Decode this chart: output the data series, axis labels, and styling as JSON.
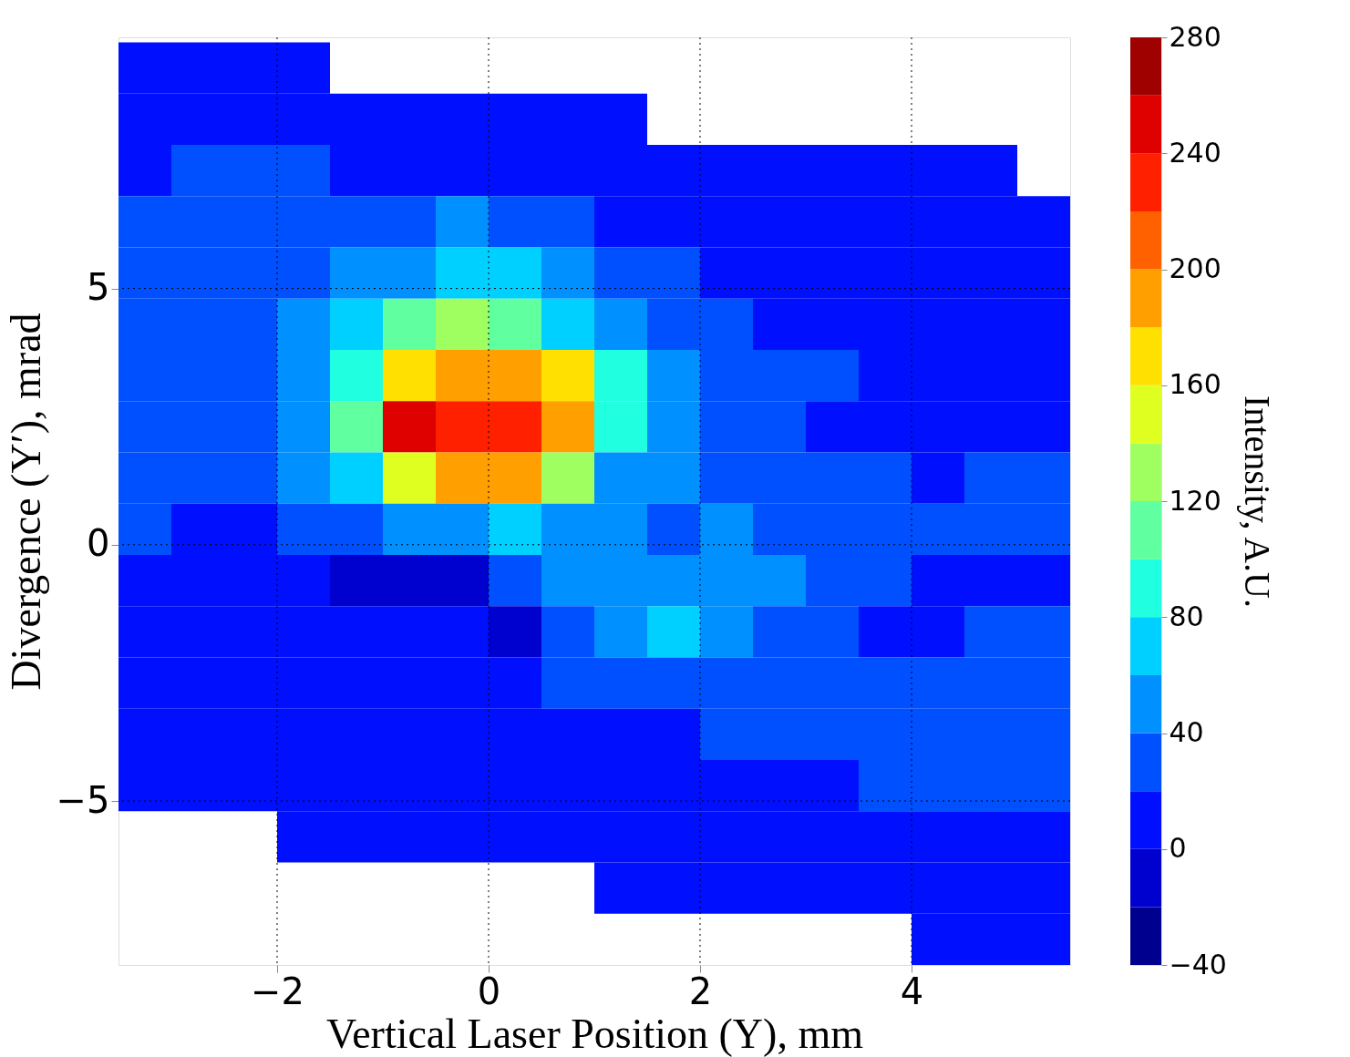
{
  "chart_data": {
    "type": "heatmap",
    "xlabel": "Vertical Laser Position (Y), mm",
    "ylabel": "Divergence (Y′), mrad",
    "clabel": "Intensity, A.U.",
    "x": [
      -3.25,
      -2.75,
      -2.25,
      -1.75,
      -1.25,
      -0.75,
      -0.25,
      0.25,
      0.75,
      1.25,
      1.75,
      2.25,
      2.75,
      3.25,
      3.75,
      4.25,
      4.75,
      5.25
    ],
    "y": [
      9.3,
      8.3,
      7.3,
      6.3,
      5.3,
      4.3,
      3.3,
      2.3,
      1.3,
      0.3,
      -0.7,
      -1.7,
      -2.7,
      -3.7,
      -4.7,
      -5.7,
      -6.7,
      -7.7
    ],
    "cells": [
      [
        10,
        10,
        10,
        10,
        null,
        null,
        null,
        null,
        null,
        null,
        null,
        null,
        null,
        null,
        null,
        null,
        null,
        null
      ],
      [
        10,
        10,
        10,
        10,
        10,
        10,
        10,
        10,
        10,
        10,
        null,
        null,
        null,
        null,
        null,
        null,
        null,
        null
      ],
      [
        10,
        30,
        30,
        30,
        10,
        10,
        10,
        10,
        10,
        10,
        10,
        10,
        10,
        10,
        10,
        10,
        10,
        null
      ],
      [
        30,
        30,
        30,
        30,
        30,
        30,
        50,
        30,
        30,
        10,
        10,
        10,
        10,
        10,
        10,
        10,
        10,
        10
      ],
      [
        30,
        30,
        30,
        30,
        50,
        50,
        70,
        70,
        50,
        30,
        30,
        10,
        10,
        10,
        10,
        10,
        10,
        10
      ],
      [
        30,
        30,
        30,
        50,
        70,
        110,
        130,
        110,
        70,
        50,
        30,
        30,
        10,
        10,
        10,
        10,
        10,
        10
      ],
      [
        30,
        30,
        30,
        50,
        90,
        170,
        190,
        190,
        170,
        90,
        50,
        30,
        30,
        30,
        10,
        10,
        10,
        10
      ],
      [
        30,
        30,
        30,
        50,
        110,
        250,
        230,
        230,
        190,
        90,
        50,
        30,
        30,
        10,
        10,
        10,
        10,
        10
      ],
      [
        30,
        30,
        30,
        50,
        70,
        150,
        190,
        190,
        130,
        50,
        50,
        30,
        30,
        30,
        30,
        10,
        30,
        30
      ],
      [
        30,
        10,
        10,
        30,
        30,
        50,
        50,
        70,
        50,
        50,
        30,
        50,
        30,
        30,
        30,
        30,
        30,
        30
      ],
      [
        10,
        10,
        10,
        10,
        -10,
        -10,
        -10,
        30,
        50,
        50,
        50,
        50,
        50,
        30,
        30,
        10,
        10,
        10
      ],
      [
        10,
        10,
        10,
        10,
        10,
        10,
        10,
        -10,
        30,
        50,
        70,
        50,
        30,
        30,
        10,
        10,
        30,
        30
      ],
      [
        10,
        10,
        10,
        10,
        10,
        10,
        10,
        10,
        30,
        30,
        30,
        30,
        30,
        30,
        30,
        30,
        30,
        30
      ],
      [
        10,
        10,
        10,
        10,
        10,
        10,
        10,
        10,
        10,
        10,
        10,
        30,
        30,
        30,
        30,
        30,
        30,
        30
      ],
      [
        10,
        10,
        10,
        10,
        10,
        10,
        10,
        10,
        10,
        10,
        10,
        10,
        10,
        10,
        30,
        30,
        30,
        30
      ],
      [
        null,
        null,
        null,
        10,
        10,
        10,
        10,
        10,
        10,
        10,
        10,
        10,
        10,
        10,
        10,
        10,
        10,
        10
      ],
      [
        null,
        null,
        null,
        null,
        null,
        null,
        null,
        null,
        null,
        10,
        10,
        10,
        10,
        10,
        10,
        10,
        10,
        10
      ],
      [
        null,
        null,
        null,
        null,
        null,
        null,
        null,
        null,
        null,
        null,
        null,
        null,
        null,
        null,
        null,
        10,
        10,
        10
      ]
    ],
    "colors": [
      "#00008f",
      "#0000cf",
      "#0010ff",
      "#0050ff",
      "#0090ff",
      "#00d0ff",
      "#20ffdf",
      "#60ff9f",
      "#9fff60",
      "#dfff20",
      "#ffe000",
      "#ffa000",
      "#ff6000",
      "#ff2000",
      "#df0000",
      "#9f0000"
    ],
    "clim": [
      -40,
      280
    ],
    "cticks": [
      -40,
      0,
      40,
      80,
      120,
      160,
      200,
      240,
      280
    ],
    "xlim": [
      -3.5,
      5.5
    ],
    "ylim": [
      -8.2,
      9.9
    ],
    "xticks": [
      -2,
      0,
      2,
      4
    ],
    "yticks": [
      -5,
      0,
      5
    ],
    "grid": true
  }
}
